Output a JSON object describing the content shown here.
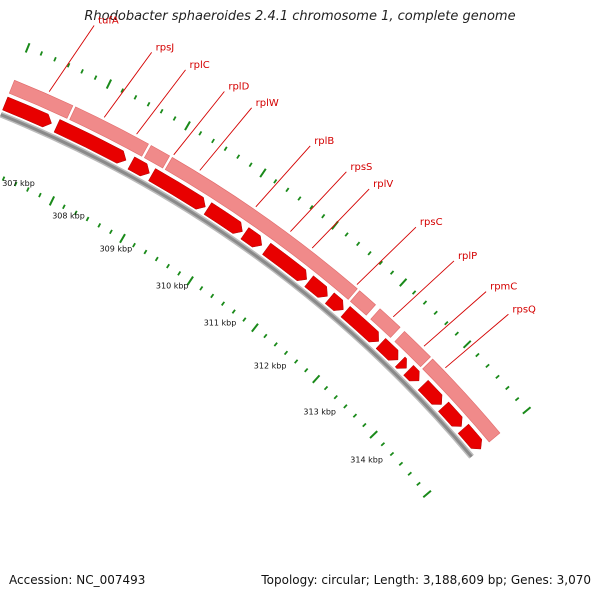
{
  "title": "Rhodobacter sphaeroides 2.4.1 chromosome 1, complete genome",
  "footer": {
    "accession": "Accession: NC_007493",
    "summary": "Topology: circular; Length: 3,188,609 bp; Genes: 3,070"
  },
  "colors": {
    "gene_forward": "#e80000",
    "gene_reverse": "#f08a8a",
    "backbone": "#8a8a8a",
    "tick": "#1a8a1a",
    "label": "#d40000"
  },
  "scale_labels": [
    "307 kbp",
    "308 kbp",
    "309 kbp",
    "310 kbp",
    "311 kbp",
    "312 kbp",
    "313 kbp",
    "314 kbp"
  ],
  "gene_labels": [
    "tufA",
    "rpsJ",
    "rplC",
    "rplD",
    "rplW",
    "rplB",
    "rpsS",
    "rplV",
    "rpsC",
    "rplP",
    "rpmC",
    "rpsQ"
  ]
}
